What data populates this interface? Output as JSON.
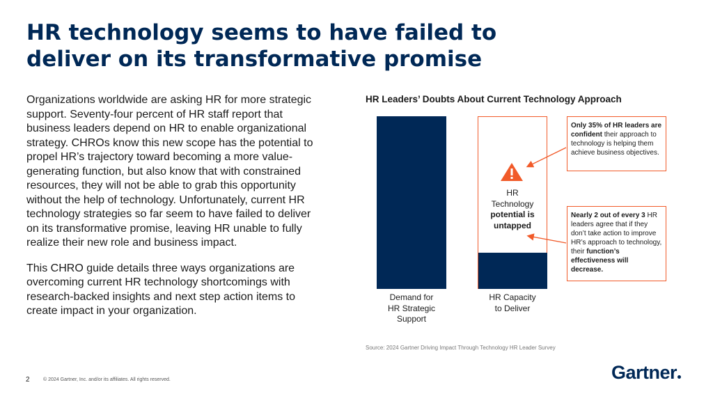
{
  "title": {
    "line1": "HR technology seems to have failed to",
    "line2": "deliver on its transformative promise"
  },
  "body": {
    "paragraph1": "Organizations worldwide are asking HR for more strategic support. Seventy-four percent of HR staff report that business leaders depend on HR to enable organizational strategy. CHROs know this new scope has the potential to propel HR’s trajectory toward becoming a more value-generating function, but also know that with constrained resources, they will not be able to grab this opportunity without the help of technology. Unfortunately, current HR technology strategies so far seem to have failed to deliver on its transformative promise, leaving HR unable to fully realize their new role and business impact.",
    "paragraph2": "This CHRO guide details three ways organizations are overcoming current HR technology shortcomings with research-backed insights and next step action items to create impact in your organization."
  },
  "chart_data": {
    "type": "bar",
    "title": "HR Leaders’ Doubts About Current Technology Approach",
    "categories": [
      "Demand for HR Strategic Support",
      "HR Capacity to Deliver"
    ],
    "category_lines": [
      [
        "Demand for",
        "HR Strategic",
        "Support"
      ],
      [
        "HR Capacity",
        "to Deliver"
      ]
    ],
    "values": [
      100,
      21
    ],
    "ylim": [
      0,
      100
    ],
    "grid": false,
    "bar_inner_label": {
      "line1": "HR",
      "line2": "Technology",
      "line3": "potential is",
      "line4": "untapped"
    },
    "colors": {
      "bar": "#002856",
      "accent": "#f15a29"
    },
    "warning_icon": "warning-triangle-icon"
  },
  "callouts": {
    "top": {
      "bold": "Only 35% of HR leaders are confident",
      "rest": " their approach to technology is helping them achieve business objectives."
    },
    "bottom": {
      "bold1": "Nearly 2 out of every 3",
      "mid": " HR leaders agree that if they don’t take action to improve HR’s approach to technology, their ",
      "bold2": "function’s effectiveness will decrease."
    }
  },
  "footer": {
    "source": "Source: 2024 Gartner Driving Impact Through Technology HR Leader Survey",
    "page_number": "2",
    "copyright": "© 2024 Gartner, Inc. and/or its affiliates. All rights reserved.",
    "logo": "Gartner"
  },
  "colors": {
    "title": "#002856",
    "accent": "#f15a29"
  }
}
